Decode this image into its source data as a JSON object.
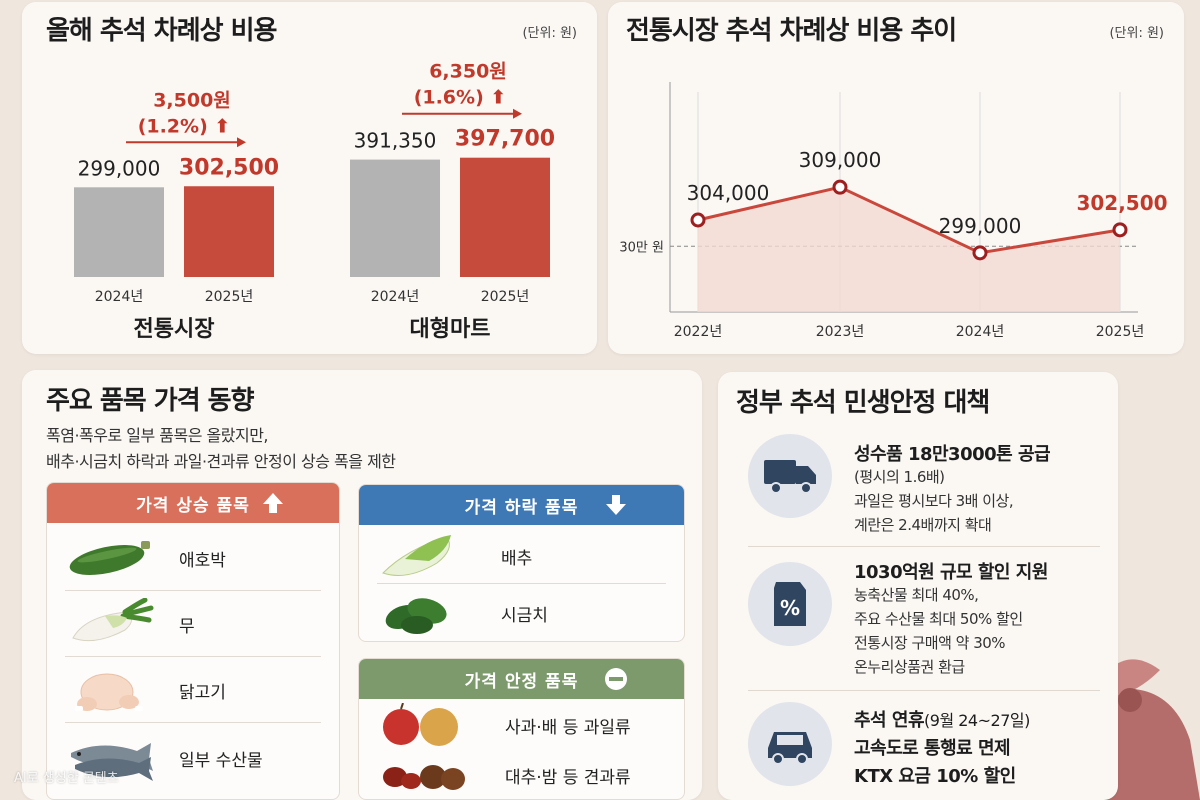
{
  "panel1": {
    "title": "올해 추석 차례상 비용",
    "unit": "(단위: 원)",
    "groups": [
      {
        "name": "전통시장",
        "years": [
          "2024년",
          "2025년"
        ],
        "values": [
          299000,
          302500
        ],
        "value_labels": [
          "299,000",
          "302,500"
        ],
        "change_amount": "3,500원",
        "change_pct": "(1.2%)"
      },
      {
        "name": "대형마트",
        "years": [
          "2024년",
          "2025년"
        ],
        "values": [
          391350,
          397700
        ],
        "value_labels": [
          "391,350",
          "397,700"
        ],
        "change_amount": "6,350원",
        "change_pct": "(1.6%)"
      }
    ]
  },
  "panel2": {
    "title": "전통시장 추석 차례상 비용 추이",
    "unit": "(단위: 원)",
    "ref_label": "30만 원"
  },
  "chart_data": [
    {
      "type": "bar",
      "title": "올해 추석 차례상 비용",
      "categories": [
        "2024년",
        "2025년"
      ],
      "series": [
        {
          "name": "전통시장",
          "values": [
            299000,
            302500
          ]
        },
        {
          "name": "대형마트",
          "values": [
            391350,
            397700
          ]
        }
      ],
      "ylim": [
        0,
        420000
      ],
      "unit": "원"
    },
    {
      "type": "line",
      "title": "전통시장 추석 차례상 비용 추이",
      "x": [
        "2022년",
        "2023년",
        "2024년",
        "2025년"
      ],
      "y": [
        304000,
        309000,
        299000,
        302500
      ],
      "value_labels": [
        "304,000",
        "309,000",
        "299,000",
        "302,500"
      ],
      "reference_line": 300000,
      "reference_label": "30만 원",
      "ylim": [
        290000,
        325000
      ],
      "unit": "원"
    }
  ],
  "panel3": {
    "title": "주요 품목 가격 동향",
    "desc1": "폭염·폭우로 일부 품목은 올랐지만,",
    "desc2": "배추·시금치 하락과 과일·견과류 안정이 상승 폭을 제한",
    "up": {
      "title": "가격 상승 품목",
      "items": [
        "애호박",
        "무",
        "닭고기",
        "일부 수산물"
      ]
    },
    "down": {
      "title": "가격 하락 품목",
      "items": [
        "배추",
        "시금치"
      ]
    },
    "stable": {
      "title": "가격 안정 품목",
      "items": [
        "사과·배 등 과일류",
        "대추·밤 등 견과류"
      ]
    }
  },
  "panel4": {
    "title": "정부 추석 민생안정 대책",
    "policies": [
      {
        "icon": "truck-icon",
        "head": "성수품 18만3000톤 공급",
        "lines": [
          "(평시의 1.6배)",
          "과일은 평시보다 3배 이상,",
          "계란은 2.4배까지 확대"
        ]
      },
      {
        "icon": "discount-tag-icon",
        "head": "1030억원 규모 할인 지원",
        "lines": [
          "농축산물 최대 40%,",
          "주요 수산물 최대 50% 할인",
          "전통시장 구매액 약 30%",
          "온누리상품권 환급"
        ]
      },
      {
        "icon": "car-icon",
        "head": "추석 연휴",
        "head_suffix": "(9월 24~27일)",
        "lines": [
          "고속도로 통행료 면제",
          "KTX 요금 10% 할인"
        ]
      }
    ]
  },
  "watermark": "AI로 생성한 콘텐츠",
  "colors": {
    "accent_red": "#c0392b",
    "bar_gray": "#b3b3b3",
    "bar_red": "#c64b3c",
    "line_red": "#c9483b",
    "up_head": "#d8705c",
    "down_head": "#3f79b5",
    "stable_head": "#7d9a6c",
    "policy_icon": "#2f4560"
  }
}
